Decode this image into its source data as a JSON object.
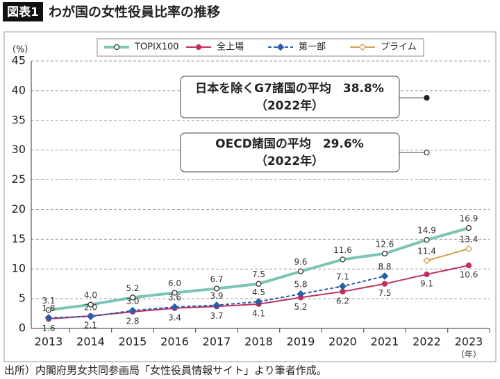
{
  "chart_data": {
    "type": "line",
    "figure_label": "図表1",
    "title": "わが国の女性役員比率の推移",
    "y_unit": "（%）",
    "x_unit": "（年）",
    "source": "出所）内閣府男女共同参画局「女性役員情報サイト」より筆者作成。",
    "categories": [
      "2013",
      "2014",
      "2015",
      "2016",
      "2017",
      "2018",
      "2019",
      "2020",
      "2021",
      "2022",
      "2023"
    ],
    "ylim": [
      0,
      45
    ],
    "yticks": [
      0,
      5,
      10,
      15,
      20,
      25,
      30,
      35,
      40,
      45
    ],
    "grid": true,
    "series": [
      {
        "name": "TOPIX100",
        "color": "#7cc4b5",
        "marker": "circle-open",
        "dash": false,
        "label_side": "above",
        "values": [
          3.1,
          4.0,
          5.2,
          6.0,
          6.7,
          7.5,
          9.6,
          11.6,
          12.6,
          14.9,
          16.9
        ],
        "value_labels": [
          "3.1",
          "4.0",
          "5.2",
          "6.0",
          "6.7",
          "7.5",
          "9.6",
          "11.6",
          "12.6",
          "14.9",
          "16.9"
        ]
      },
      {
        "name": "全上場",
        "color": "#c0305e",
        "marker": "circle-filled",
        "dash": false,
        "label_side": "below",
        "values": [
          1.6,
          2.1,
          2.8,
          3.4,
          3.7,
          4.1,
          5.2,
          6.2,
          7.5,
          9.1,
          10.6
        ],
        "value_labels": [
          "1.6",
          "2.1",
          "2.8",
          "3.4",
          "3.7",
          "4.1",
          "5.2",
          "6.2",
          "7.5",
          "9.1",
          "10.6"
        ]
      },
      {
        "name": "第一部",
        "color": "#2a5caa",
        "marker": "diamond-filled",
        "dash": true,
        "label_side": "above",
        "values": [
          1.8,
          2.0,
          3.0,
          3.6,
          3.9,
          4.5,
          5.8,
          7.1,
          8.8,
          null,
          null
        ],
        "value_labels": [
          "1.8",
          "2.0",
          "3.0",
          "3.6",
          "3.9",
          "4.5",
          "5.8",
          "7.1",
          "8.8",
          null,
          null
        ]
      },
      {
        "name": "プライム",
        "color": "#d4a050",
        "marker": "diamond-open",
        "dash": false,
        "label_side": "above",
        "values": [
          null,
          null,
          null,
          null,
          null,
          null,
          null,
          null,
          null,
          11.4,
          13.4
        ],
        "value_labels": [
          null,
          null,
          null,
          null,
          null,
          null,
          null,
          null,
          null,
          "11.4",
          "13.4"
        ]
      }
    ],
    "annotations": [
      {
        "text": "日本を除くG7諸国の平均　38.8%",
        "sub": "（2022年）",
        "value": 38.8,
        "marker": "circle-filled",
        "color": "#222222"
      },
      {
        "text": "OECD諸国の平均　29.6%",
        "sub": "（2022年）",
        "value": 29.6,
        "marker": "circle-open",
        "color": "#555555"
      }
    ]
  }
}
